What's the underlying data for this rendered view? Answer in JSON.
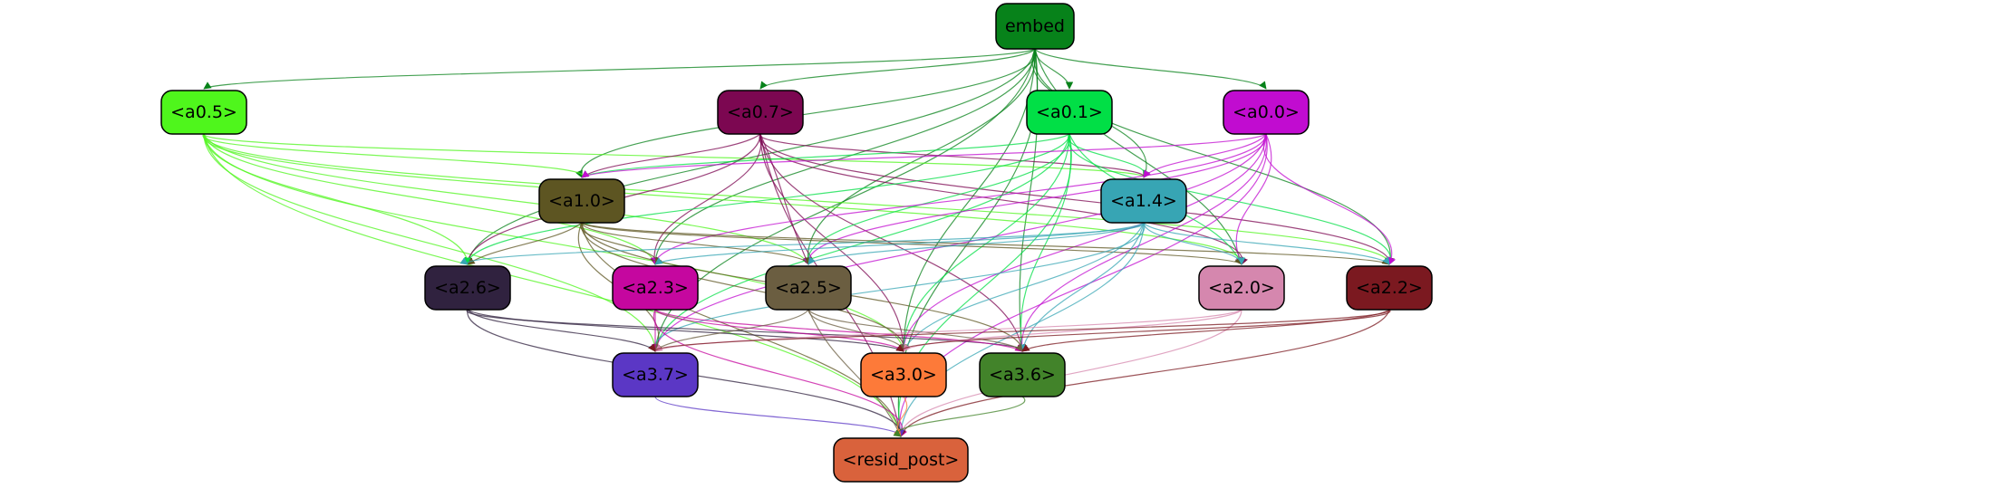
{
  "graph": {
    "nodes": [
      {
        "id": "embed",
        "label": "embed",
        "color": "#07821a"
      },
      {
        "id": "a0_5",
        "label": "<a0.5>",
        "color": "#4ff61c"
      },
      {
        "id": "a0_7",
        "label": "<a0.7>",
        "color": "#7c0751"
      },
      {
        "id": "a0_1",
        "label": "<a0.1>",
        "color": "#01df46"
      },
      {
        "id": "a0_0",
        "label": "<a0.0>",
        "color": "#c10cd0"
      },
      {
        "id": "a1_0",
        "label": "<a1.0>",
        "color": "#5d5522"
      },
      {
        "id": "a1_4",
        "label": "<a1.4>",
        "color": "#37a5b4"
      },
      {
        "id": "a2_6",
        "label": "<a2.6>",
        "color": "#30223f"
      },
      {
        "id": "a2_3",
        "label": "<a2.3>",
        "color": "#c5079f"
      },
      {
        "id": "a2_5",
        "label": "<a2.5>",
        "color": "#6b5e41"
      },
      {
        "id": "a2_0",
        "label": "<a2.0>",
        "color": "#d587ae"
      },
      {
        "id": "a2_2",
        "label": "<a2.2>",
        "color": "#7b1920"
      },
      {
        "id": "a3_7",
        "label": "<a3.7>",
        "color": "#5b37c5"
      },
      {
        "id": "a3_0",
        "label": "<a3.0>",
        "color": "#fd7a39"
      },
      {
        "id": "a3_6",
        "label": "<a3.6>",
        "color": "#42832a"
      },
      {
        "id": "resid_post",
        "label": "<resid_post>",
        "color": "#d9623c"
      }
    ],
    "edges": [
      {
        "from": "embed",
        "to": "a0_5"
      },
      {
        "from": "embed",
        "to": "a0_7"
      },
      {
        "from": "embed",
        "to": "a0_1"
      },
      {
        "from": "embed",
        "to": "a0_0"
      },
      {
        "from": "embed",
        "to": "a1_0"
      },
      {
        "from": "embed",
        "to": "a1_4"
      },
      {
        "from": "embed",
        "to": "a2_6"
      },
      {
        "from": "embed",
        "to": "a2_3"
      },
      {
        "from": "embed",
        "to": "a2_5"
      },
      {
        "from": "embed",
        "to": "a2_0"
      },
      {
        "from": "embed",
        "to": "a2_2"
      },
      {
        "from": "embed",
        "to": "a3_7"
      },
      {
        "from": "embed",
        "to": "a3_0"
      },
      {
        "from": "embed",
        "to": "a3_6"
      },
      {
        "from": "embed",
        "to": "resid_post"
      },
      {
        "from": "a0_5",
        "to": "a1_0"
      },
      {
        "from": "a0_5",
        "to": "a1_4"
      },
      {
        "from": "a0_5",
        "to": "a2_6"
      },
      {
        "from": "a0_5",
        "to": "a2_3"
      },
      {
        "from": "a0_5",
        "to": "a2_5"
      },
      {
        "from": "a0_5",
        "to": "a2_0"
      },
      {
        "from": "a0_5",
        "to": "a2_2"
      },
      {
        "from": "a0_5",
        "to": "a3_7"
      },
      {
        "from": "a0_5",
        "to": "a3_0"
      },
      {
        "from": "a0_5",
        "to": "resid_post"
      },
      {
        "from": "a0_7",
        "to": "a1_0"
      },
      {
        "from": "a0_7",
        "to": "a1_4"
      },
      {
        "from": "a0_7",
        "to": "a2_6"
      },
      {
        "from": "a0_7",
        "to": "a2_3"
      },
      {
        "from": "a0_7",
        "to": "a2_5"
      },
      {
        "from": "a0_7",
        "to": "a2_0"
      },
      {
        "from": "a0_7",
        "to": "a2_2"
      },
      {
        "from": "a0_7",
        "to": "a3_0"
      },
      {
        "from": "a0_7",
        "to": "a3_6"
      },
      {
        "from": "a0_7",
        "to": "resid_post"
      },
      {
        "from": "a0_1",
        "to": "a1_0"
      },
      {
        "from": "a0_1",
        "to": "a1_4"
      },
      {
        "from": "a0_1",
        "to": "a2_6"
      },
      {
        "from": "a0_1",
        "to": "a2_5"
      },
      {
        "from": "a0_1",
        "to": "a2_0"
      },
      {
        "from": "a0_1",
        "to": "a2_2"
      },
      {
        "from": "a0_1",
        "to": "a3_7"
      },
      {
        "from": "a0_1",
        "to": "a3_0"
      },
      {
        "from": "a0_1",
        "to": "a3_6"
      },
      {
        "from": "a0_1",
        "to": "resid_post"
      },
      {
        "from": "a0_0",
        "to": "a1_0"
      },
      {
        "from": "a0_0",
        "to": "a1_4"
      },
      {
        "from": "a0_0",
        "to": "a2_3"
      },
      {
        "from": "a0_0",
        "to": "a2_5"
      },
      {
        "from": "a0_0",
        "to": "a2_0"
      },
      {
        "from": "a0_0",
        "to": "a2_2"
      },
      {
        "from": "a0_0",
        "to": "a3_7"
      },
      {
        "from": "a0_0",
        "to": "a3_0"
      },
      {
        "from": "a0_0",
        "to": "a3_6"
      },
      {
        "from": "a0_0",
        "to": "resid_post"
      },
      {
        "from": "a1_0",
        "to": "a2_6"
      },
      {
        "from": "a1_0",
        "to": "a2_3"
      },
      {
        "from": "a1_0",
        "to": "a2_5"
      },
      {
        "from": "a1_0",
        "to": "a2_0"
      },
      {
        "from": "a1_0",
        "to": "a2_2"
      },
      {
        "from": "a1_0",
        "to": "a3_7"
      },
      {
        "from": "a1_0",
        "to": "a3_0"
      },
      {
        "from": "a1_0",
        "to": "a3_6"
      },
      {
        "from": "a1_0",
        "to": "resid_post"
      },
      {
        "from": "a1_4",
        "to": "a2_6"
      },
      {
        "from": "a1_4",
        "to": "a2_3"
      },
      {
        "from": "a1_4",
        "to": "a2_5"
      },
      {
        "from": "a1_4",
        "to": "a2_0"
      },
      {
        "from": "a1_4",
        "to": "a2_2"
      },
      {
        "from": "a1_4",
        "to": "a3_7"
      },
      {
        "from": "a1_4",
        "to": "a3_0"
      },
      {
        "from": "a1_4",
        "to": "a3_6"
      },
      {
        "from": "a1_4",
        "to": "resid_post"
      },
      {
        "from": "a2_6",
        "to": "a3_7"
      },
      {
        "from": "a2_6",
        "to": "a3_0"
      },
      {
        "from": "a2_6",
        "to": "a3_6"
      },
      {
        "from": "a2_6",
        "to": "resid_post"
      },
      {
        "from": "a2_3",
        "to": "a3_7"
      },
      {
        "from": "a2_3",
        "to": "a3_0"
      },
      {
        "from": "a2_3",
        "to": "a3_6"
      },
      {
        "from": "a2_3",
        "to": "resid_post"
      },
      {
        "from": "a2_5",
        "to": "a3_7"
      },
      {
        "from": "a2_5",
        "to": "a3_0"
      },
      {
        "from": "a2_5",
        "to": "a3_6"
      },
      {
        "from": "a2_5",
        "to": "resid_post"
      },
      {
        "from": "a2_0",
        "to": "a3_7"
      },
      {
        "from": "a2_0",
        "to": "a3_0"
      },
      {
        "from": "a2_0",
        "to": "resid_post"
      },
      {
        "from": "a2_2",
        "to": "a3_7"
      },
      {
        "from": "a2_2",
        "to": "a3_0"
      },
      {
        "from": "a2_2",
        "to": "a3_6"
      },
      {
        "from": "a2_2",
        "to": "resid_post"
      },
      {
        "from": "a3_7",
        "to": "resid_post"
      },
      {
        "from": "a3_0",
        "to": "resid_post"
      },
      {
        "from": "a3_6",
        "to": "resid_post"
      }
    ]
  }
}
